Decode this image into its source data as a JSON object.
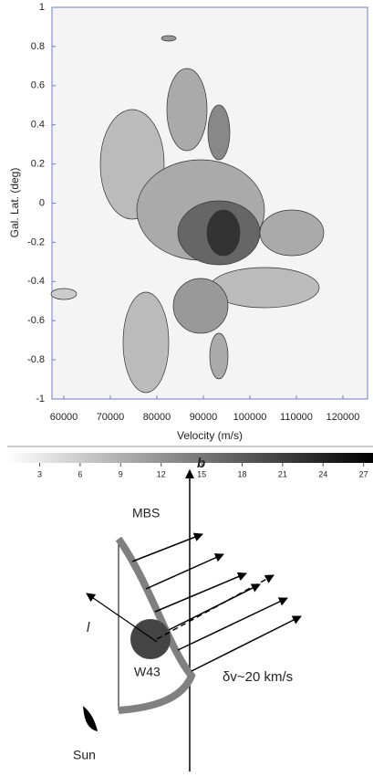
{
  "chart_data": {
    "type": "heatmap",
    "xlabel": "Velocity (m/s)",
    "ylabel": "Gal. Lat. (deg)",
    "xlim": [
      57450,
      125300
    ],
    "ylim": [
      -1,
      1
    ],
    "xticks": [
      60000,
      70000,
      80000,
      90000,
      100000,
      110000,
      120000
    ],
    "yticks": [
      -1,
      -0.8,
      -0.6,
      -0.4,
      -0.2,
      0,
      0.2,
      0.4,
      0.6,
      0.8,
      1
    ],
    "colorbar": {
      "lim": [
        0.6,
        27.7
      ],
      "ticks": [
        3,
        6,
        9,
        12,
        15,
        18,
        21,
        24,
        27
      ]
    }
  },
  "diagram": {
    "labels": {
      "mbs": "MBS",
      "b": "b",
      "l": "l",
      "w43": "W43",
      "dv": "δv~20 km/s",
      "sun": "Sun"
    }
  }
}
